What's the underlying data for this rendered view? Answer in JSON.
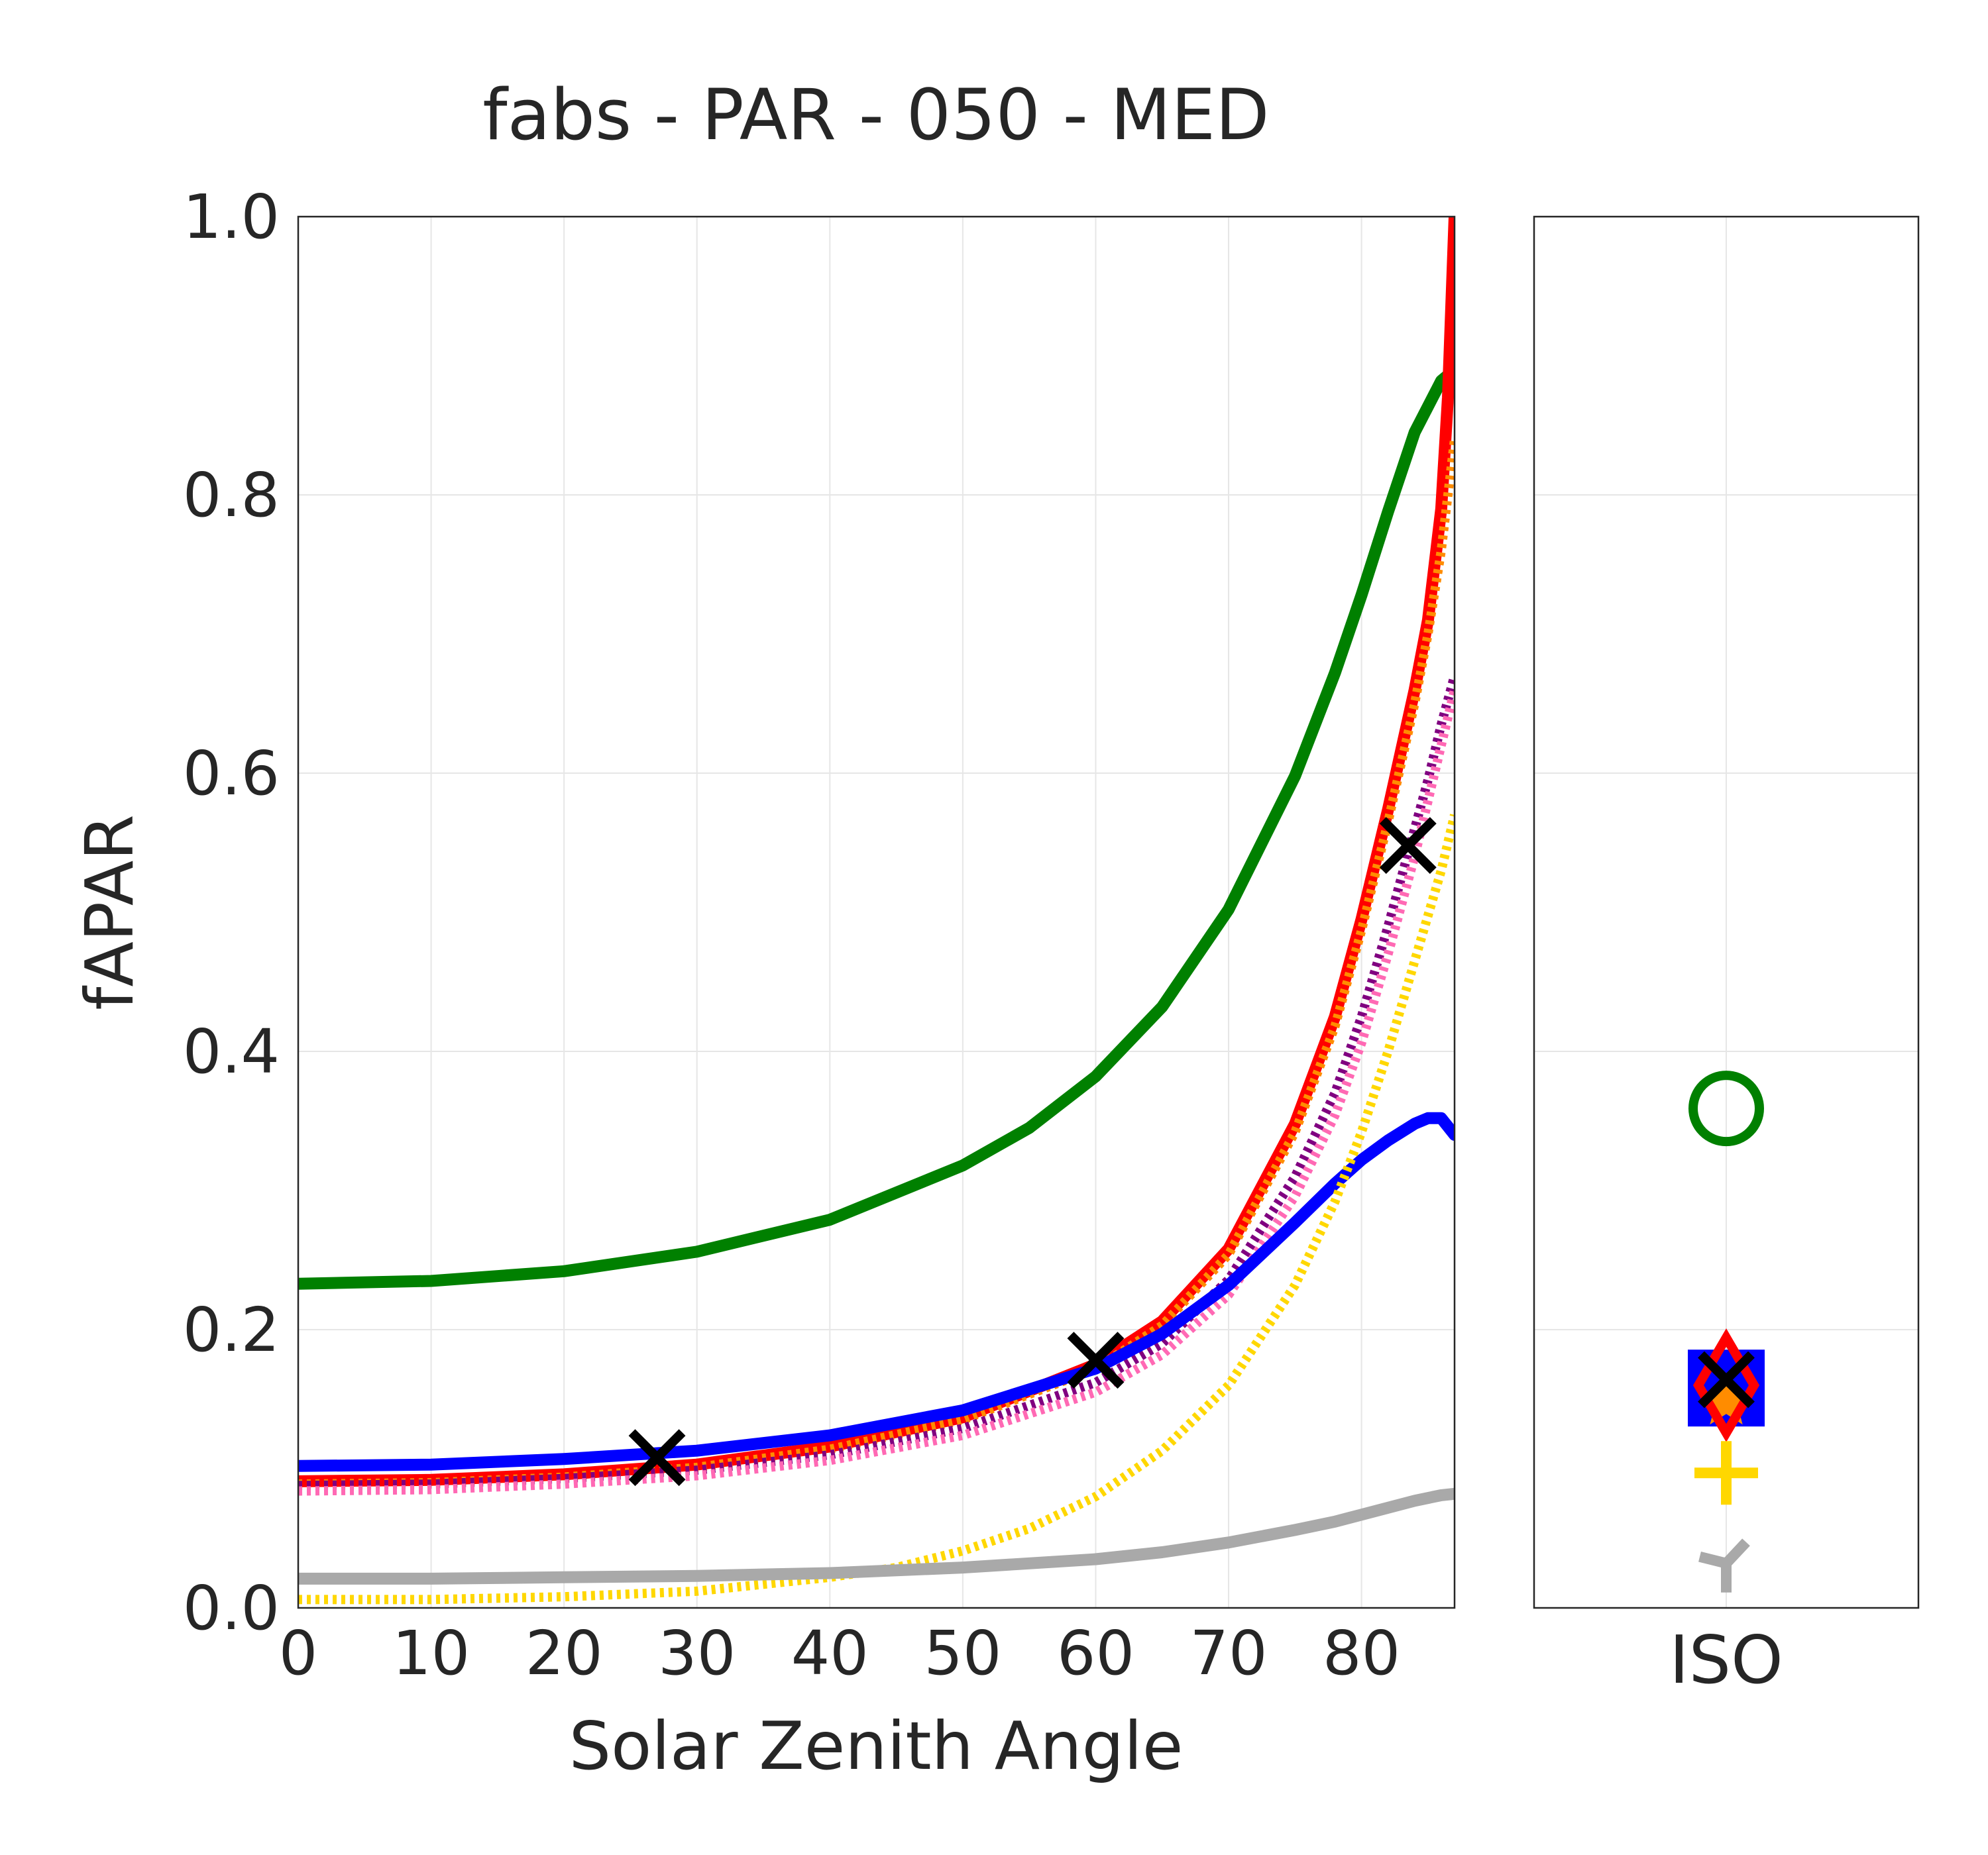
{
  "chart_data": [
    {
      "type": "line",
      "title": "fabs - PAR - 050 - MED",
      "xlabel": "Solar Zenith Angle",
      "ylabel": "fAPAR",
      "xlim": [
        0,
        87
      ],
      "ylim": [
        0,
        1.0
      ],
      "grid": true,
      "x_ticks": [
        "0",
        "10",
        "20",
        "30",
        "40",
        "50",
        "60",
        "70",
        "80"
      ],
      "y_ticks": [
        "0.0",
        "0.2",
        "0.4",
        "0.6",
        "0.8",
        "1.0"
      ],
      "colors": {
        "green": "#008000",
        "red": "#ff0000",
        "blue": "#0000ff",
        "gray": "#a9a9a9",
        "gold": "#ffd700",
        "orange": "#ff8c00",
        "pink": "#ff69b4",
        "purple": "#800080",
        "black": "#000000"
      },
      "series": [
        {
          "color": "#008000",
          "style": "solid",
          "points": [
            [
              0,
              0.233
            ],
            [
              10,
              0.235
            ],
            [
              20,
              0.242
            ],
            [
              30,
              0.256
            ],
            [
              40,
              0.279
            ],
            [
              50,
              0.318
            ],
            [
              55,
              0.345
            ],
            [
              60,
              0.382
            ],
            [
              65,
              0.432
            ],
            [
              70,
              0.502
            ],
            [
              75,
              0.598
            ],
            [
              78,
              0.672
            ],
            [
              80,
              0.728
            ],
            [
              82,
              0.788
            ],
            [
              84,
              0.845
            ],
            [
              86,
              0.882
            ],
            [
              87,
              0.89
            ]
          ]
        },
        {
          "color": "#ff0000",
          "style": "solid",
          "points": [
            [
              0,
              0.091
            ],
            [
              10,
              0.092
            ],
            [
              20,
              0.096
            ],
            [
              30,
              0.103
            ],
            [
              40,
              0.116
            ],
            [
              50,
              0.137
            ],
            [
              60,
              0.175
            ],
            [
              65,
              0.206
            ],
            [
              70,
              0.258
            ],
            [
              75,
              0.348
            ],
            [
              78,
              0.425
            ],
            [
              80,
              0.495
            ],
            [
              82,
              0.574
            ],
            [
              84,
              0.66
            ],
            [
              85,
              0.71
            ],
            [
              86,
              0.79
            ],
            [
              86.5,
              0.87
            ],
            [
              87,
              1.0
            ]
          ]
        },
        {
          "color": "#ff8c00",
          "style": "dotted",
          "points": [
            [
              0,
              0.089
            ],
            [
              10,
              0.09
            ],
            [
              20,
              0.094
            ],
            [
              30,
              0.101
            ],
            [
              40,
              0.114
            ],
            [
              50,
              0.135
            ],
            [
              60,
              0.172
            ],
            [
              65,
              0.203
            ],
            [
              70,
              0.254
            ],
            [
              75,
              0.342
            ],
            [
              78,
              0.418
            ],
            [
              80,
              0.487
            ],
            [
              82,
              0.565
            ],
            [
              84,
              0.65
            ],
            [
              85,
              0.7
            ],
            [
              86,
              0.76
            ],
            [
              87,
              0.84
            ]
          ]
        },
        {
          "color": "#800080",
          "style": "dotted",
          "points": [
            [
              0,
              0.088
            ],
            [
              10,
              0.089
            ],
            [
              20,
              0.093
            ],
            [
              30,
              0.099
            ],
            [
              40,
              0.11
            ],
            [
              50,
              0.129
            ],
            [
              60,
              0.162
            ],
            [
              65,
              0.19
            ],
            [
              70,
              0.236
            ],
            [
              75,
              0.31
            ],
            [
              78,
              0.37
            ],
            [
              80,
              0.425
            ],
            [
              82,
              0.49
            ],
            [
              84,
              0.56
            ],
            [
              85,
              0.595
            ],
            [
              86,
              0.635
            ],
            [
              87,
              0.67
            ]
          ]
        },
        {
          "color": "#ff69b4",
          "style": "dotted",
          "points": [
            [
              0,
              0.084
            ],
            [
              10,
              0.085
            ],
            [
              20,
              0.089
            ],
            [
              30,
              0.095
            ],
            [
              40,
              0.106
            ],
            [
              50,
              0.124
            ],
            [
              60,
              0.155
            ],
            [
              65,
              0.182
            ],
            [
              70,
              0.225
            ],
            [
              75,
              0.296
            ],
            [
              78,
              0.354
            ],
            [
              80,
              0.406
            ],
            [
              82,
              0.47
            ],
            [
              84,
              0.54
            ],
            [
              85,
              0.58
            ],
            [
              86,
              0.62
            ],
            [
              87,
              0.66
            ]
          ]
        },
        {
          "color": "#0000ff",
          "style": "solid",
          "points": [
            [
              0,
              0.102
            ],
            [
              10,
              0.103
            ],
            [
              20,
              0.107
            ],
            [
              30,
              0.113
            ],
            [
              40,
              0.124
            ],
            [
              50,
              0.142
            ],
            [
              60,
              0.172
            ],
            [
              65,
              0.197
            ],
            [
              70,
              0.232
            ],
            [
              75,
              0.277
            ],
            [
              78,
              0.305
            ],
            [
              80,
              0.322
            ],
            [
              82,
              0.336
            ],
            [
              84,
              0.348
            ],
            [
              85,
              0.352
            ],
            [
              86,
              0.352
            ],
            [
              87,
              0.34
            ]
          ]
        },
        {
          "color": "#ffd700",
          "style": "dotted",
          "points": [
            [
              0,
              0.006
            ],
            [
              10,
              0.006
            ],
            [
              20,
              0.008
            ],
            [
              30,
              0.012
            ],
            [
              40,
              0.022
            ],
            [
              45,
              0.029
            ],
            [
              50,
              0.041
            ],
            [
              55,
              0.057
            ],
            [
              60,
              0.08
            ],
            [
              65,
              0.113
            ],
            [
              70,
              0.16
            ],
            [
              75,
              0.232
            ],
            [
              78,
              0.292
            ],
            [
              80,
              0.342
            ],
            [
              82,
              0.4
            ],
            [
              84,
              0.465
            ],
            [
              86,
              0.53
            ],
            [
              87,
              0.57
            ]
          ]
        },
        {
          "color": "#a9a9a9",
          "style": "solid",
          "points": [
            [
              0,
              0.021
            ],
            [
              10,
              0.021
            ],
            [
              20,
              0.022
            ],
            [
              30,
              0.023
            ],
            [
              40,
              0.025
            ],
            [
              50,
              0.029
            ],
            [
              60,
              0.035
            ],
            [
              65,
              0.04
            ],
            [
              70,
              0.047
            ],
            [
              75,
              0.056
            ],
            [
              78,
              0.062
            ],
            [
              80,
              0.067
            ],
            [
              82,
              0.072
            ],
            [
              84,
              0.077
            ],
            [
              86,
              0.081
            ],
            [
              87,
              0.082
            ]
          ]
        }
      ],
      "markers": [
        {
          "x": 27,
          "y": 0.108,
          "symbol": "x",
          "color": "#000000"
        },
        {
          "x": 60,
          "y": 0.178,
          "symbol": "x",
          "color": "#000000"
        },
        {
          "x": 83.5,
          "y": 0.548,
          "symbol": "x",
          "color": "#000000"
        }
      ]
    },
    {
      "type": "scatter",
      "xlabel": "ISO",
      "ylim": [
        0,
        1.0
      ],
      "grid": true,
      "points": [
        {
          "y": 0.359,
          "symbol": "circle",
          "color": "#008000"
        },
        {
          "y": 0.158,
          "symbol": "square",
          "color": "#0000ff"
        },
        {
          "y": 0.148,
          "symbol": "star",
          "color": "#ff8c00"
        },
        {
          "y": 0.16,
          "symbol": "diamond",
          "color": "#ff0000"
        },
        {
          "y": 0.164,
          "symbol": "x",
          "color": "#000000"
        },
        {
          "y": 0.097,
          "symbol": "plus",
          "color": "#ffd700"
        },
        {
          "y": 0.032,
          "symbol": "tri-down",
          "color": "#a9a9a9"
        }
      ]
    }
  ]
}
